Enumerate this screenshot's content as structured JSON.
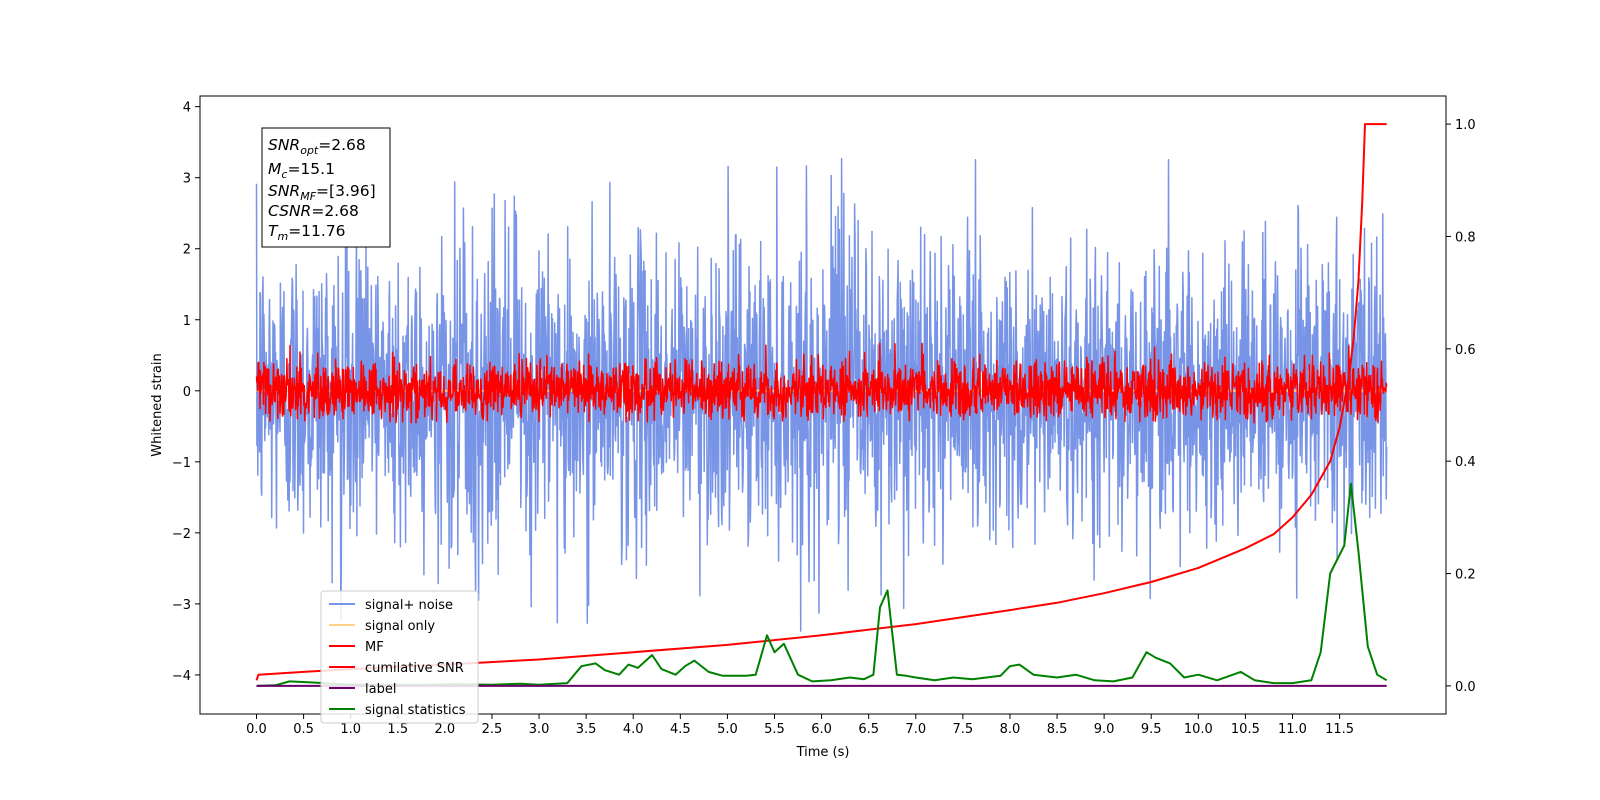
{
  "chart_data": {
    "type": "line",
    "xlabel": "Time (s)",
    "ylabel": "Whitened strain",
    "xlim": [
      -0.6,
      12.63
    ],
    "ylim": [
      -4.55,
      4.15
    ],
    "y2lim": [
      -0.05,
      1.05
    ],
    "x_ticks": [
      0.0,
      0.5,
      1.0,
      1.5,
      2.0,
      2.5,
      3.0,
      3.5,
      4.0,
      4.5,
      5.0,
      5.5,
      6.0,
      6.5,
      7.0,
      7.5,
      8.0,
      8.5,
      9.0,
      9.5,
      10.0,
      10.5,
      11.0,
      11.5
    ],
    "x_tick_labels": [
      "0.0",
      "0.5",
      "1.0",
      "1.5",
      "2.0",
      "2.5",
      "3.0",
      "3.5",
      "4.0",
      "4.5",
      "5.0",
      "5.5",
      "6.0",
      "6.5",
      "7.0",
      "7.5",
      "8.0",
      "8.5",
      "9.0",
      "9.5",
      "10.0",
      "10.5",
      "11.0",
      "11.5"
    ],
    "y_ticks": [
      -4,
      -3,
      -2,
      -1,
      0,
      1,
      2,
      3,
      4
    ],
    "y_tick_labels": [
      "−4",
      "−3",
      "−2",
      "−1",
      "0",
      "1",
      "2",
      "3",
      "4"
    ],
    "y2_ticks": [
      0.0,
      0.2,
      0.4,
      0.6,
      0.8,
      1.0
    ],
    "y2_tick_labels": [
      "0.0",
      "0.2",
      "0.4",
      "0.6",
      "0.8",
      "1.0"
    ],
    "grid": false,
    "legend_position": "lower-left",
    "legend": [
      {
        "label": "signal+ noise",
        "color": "#7894e6"
      },
      {
        "label": "signal only",
        "color": "#ffd38a"
      },
      {
        "label": "MF",
        "color": "#ff0000"
      },
      {
        "label": "cumilative SNR",
        "color": "#ff0000"
      },
      {
        "label": "label",
        "color": "#6a006a"
      },
      {
        "label": "signal statistics",
        "color": "#008000"
      }
    ],
    "info_box": {
      "snr_opt": {
        "var": "SNR",
        "sub": "opt",
        "value": "=2.68"
      },
      "mc": {
        "var": "M",
        "sub": "c",
        "value": "=15.1"
      },
      "snr_mf": {
        "var": "SNR",
        "sub": "MF",
        "value": "=[3.96]"
      },
      "csnr": {
        "var": "CSNR",
        "sub": "",
        "value": "=2.68"
      },
      "tm": {
        "var": "T",
        "sub": "m",
        "value": "=11.76"
      }
    },
    "series": [
      {
        "name": "signal+ noise",
        "axis": "left",
        "color": "#7894e6",
        "kind": "noise",
        "x_range": [
          0.0,
          12.0
        ],
        "typical_range": [
          -2.0,
          2.2
        ],
        "peak_range": [
          -3.4,
          3.75
        ],
        "mean": 0.0
      },
      {
        "name": "signal only",
        "axis": "left",
        "color": "#ffd38a",
        "kind": "flat",
        "x_range": [
          0.0,
          12.0
        ],
        "y": 0.0
      },
      {
        "name": "MF",
        "axis": "left",
        "color": "#ff0000",
        "kind": "noise",
        "x_range": [
          0.0,
          12.0
        ],
        "typical_range": [
          -0.4,
          0.45
        ],
        "peak_range": [
          -0.45,
          1.0
        ],
        "mean": 0.0
      },
      {
        "name": "cumilative SNR",
        "axis": "right",
        "color": "#ff0000",
        "kind": "curve",
        "points": [
          [
            0.0,
            0.01
          ],
          [
            0.02,
            0.02
          ],
          [
            0.5,
            0.025
          ],
          [
            1.0,
            0.03
          ],
          [
            2.0,
            0.038
          ],
          [
            3.0,
            0.047
          ],
          [
            4.0,
            0.06
          ],
          [
            5.0,
            0.073
          ],
          [
            6.0,
            0.09
          ],
          [
            7.0,
            0.11
          ],
          [
            8.0,
            0.135
          ],
          [
            8.5,
            0.148
          ],
          [
            9.0,
            0.165
          ],
          [
            9.5,
            0.185
          ],
          [
            10.0,
            0.21
          ],
          [
            10.5,
            0.245
          ],
          [
            10.8,
            0.27
          ],
          [
            11.0,
            0.3
          ],
          [
            11.2,
            0.34
          ],
          [
            11.4,
            0.4
          ],
          [
            11.5,
            0.46
          ],
          [
            11.6,
            0.55
          ],
          [
            11.65,
            0.62
          ],
          [
            11.7,
            0.72
          ],
          [
            11.74,
            0.86
          ],
          [
            11.77,
            1.0
          ],
          [
            12.0,
            1.0
          ]
        ]
      },
      {
        "name": "label",
        "axis": "right",
        "color": "#6a006a",
        "kind": "curve",
        "points": [
          [
            0.0,
            0.0
          ],
          [
            12.0,
            0.0
          ]
        ]
      },
      {
        "name": "signal statistics",
        "axis": "right",
        "color": "#008000",
        "kind": "curve",
        "points": [
          [
            0.0,
            0.0
          ],
          [
            0.2,
            0.001
          ],
          [
            0.35,
            0.008
          ],
          [
            0.6,
            0.006
          ],
          [
            0.9,
            0.003
          ],
          [
            1.2,
            0.002
          ],
          [
            1.5,
            0.002
          ],
          [
            1.8,
            0.002
          ],
          [
            2.1,
            0.003
          ],
          [
            2.5,
            0.002
          ],
          [
            2.8,
            0.004
          ],
          [
            3.0,
            0.002
          ],
          [
            3.3,
            0.005
          ],
          [
            3.45,
            0.035
          ],
          [
            3.6,
            0.04
          ],
          [
            3.7,
            0.028
          ],
          [
            3.85,
            0.02
          ],
          [
            3.95,
            0.038
          ],
          [
            4.05,
            0.032
          ],
          [
            4.2,
            0.055
          ],
          [
            4.3,
            0.03
          ],
          [
            4.45,
            0.02
          ],
          [
            4.55,
            0.035
          ],
          [
            4.65,
            0.045
          ],
          [
            4.8,
            0.025
          ],
          [
            4.95,
            0.018
          ],
          [
            5.2,
            0.018
          ],
          [
            5.3,
            0.02
          ],
          [
            5.42,
            0.09
          ],
          [
            5.5,
            0.06
          ],
          [
            5.6,
            0.075
          ],
          [
            5.75,
            0.02
          ],
          [
            5.9,
            0.008
          ],
          [
            6.1,
            0.01
          ],
          [
            6.3,
            0.015
          ],
          [
            6.45,
            0.012
          ],
          [
            6.55,
            0.02
          ],
          [
            6.62,
            0.14
          ],
          [
            6.7,
            0.17
          ],
          [
            6.8,
            0.02
          ],
          [
            6.9,
            0.018
          ],
          [
            7.0,
            0.015
          ],
          [
            7.2,
            0.01
          ],
          [
            7.4,
            0.015
          ],
          [
            7.6,
            0.012
          ],
          [
            7.9,
            0.018
          ],
          [
            8.0,
            0.035
          ],
          [
            8.1,
            0.038
          ],
          [
            8.25,
            0.02
          ],
          [
            8.5,
            0.015
          ],
          [
            8.7,
            0.02
          ],
          [
            8.9,
            0.01
          ],
          [
            9.1,
            0.008
          ],
          [
            9.3,
            0.015
          ],
          [
            9.45,
            0.06
          ],
          [
            9.55,
            0.05
          ],
          [
            9.7,
            0.04
          ],
          [
            9.85,
            0.015
          ],
          [
            10.0,
            0.02
          ],
          [
            10.2,
            0.01
          ],
          [
            10.45,
            0.025
          ],
          [
            10.6,
            0.01
          ],
          [
            10.8,
            0.005
          ],
          [
            11.0,
            0.005
          ],
          [
            11.2,
            0.01
          ],
          [
            11.3,
            0.06
          ],
          [
            11.4,
            0.2
          ],
          [
            11.55,
            0.25
          ],
          [
            11.62,
            0.36
          ],
          [
            11.7,
            0.24
          ],
          [
            11.8,
            0.07
          ],
          [
            11.9,
            0.02
          ],
          [
            12.0,
            0.01
          ]
        ]
      }
    ]
  }
}
